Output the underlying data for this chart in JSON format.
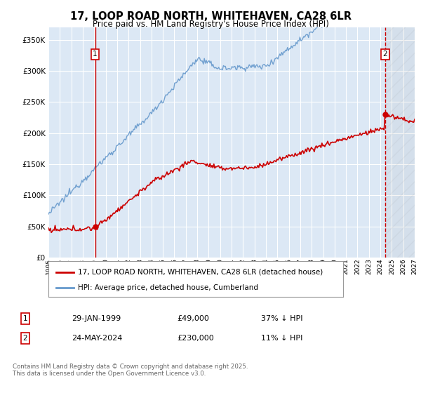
{
  "title": "17, LOOP ROAD NORTH, WHITEHAVEN, CA28 6LR",
  "subtitle": "Price paid vs. HM Land Registry's House Price Index (HPI)",
  "background_color": "#ffffff",
  "plot_bg_color": "#dce8f5",
  "grid_color": "#ffffff",
  "hpi_color": "#6699cc",
  "price_color": "#cc0000",
  "marker1_x": 1999.08,
  "marker2_x": 2024.42,
  "marker1_label": "1",
  "marker2_label": "2",
  "marker1_price": 49000,
  "marker2_price": 230000,
  "annotation1_date": "29-JAN-1999",
  "annotation1_price": "£49,000",
  "annotation1_hpi": "37% ↓ HPI",
  "annotation2_date": "24-MAY-2024",
  "annotation2_price": "£230,000",
  "annotation2_hpi": "11% ↓ HPI",
  "ylim": [
    0,
    370000
  ],
  "yticks": [
    0,
    50000,
    100000,
    150000,
    200000,
    250000,
    300000,
    350000
  ],
  "xlim_start": 1995,
  "xlim_end": 2027,
  "legend_label1": "17, LOOP ROAD NORTH, WHITEHAVEN, CA28 6LR (detached house)",
  "legend_label2": "HPI: Average price, detached house, Cumberland",
  "footer": "Contains HM Land Registry data © Crown copyright and database right 2025.\nThis data is licensed under the Open Government Licence v3.0."
}
